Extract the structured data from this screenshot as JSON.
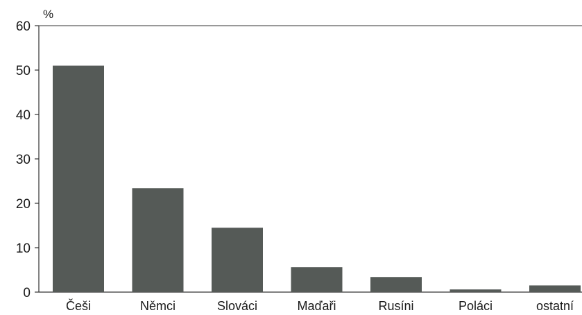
{
  "chart_data": {
    "type": "bar",
    "unit_label": "%",
    "categories": [
      "Češi",
      "Němci",
      "Slováci",
      "Maďaři",
      "Rusíni",
      "Poláci",
      "ostatní"
    ],
    "values": [
      51,
      23.4,
      14.5,
      5.6,
      3.4,
      0.6,
      1.5
    ],
    "ylim": [
      0,
      60
    ],
    "yticks": [
      0,
      10,
      20,
      30,
      40,
      50,
      60
    ],
    "bar_color": "#555a57",
    "axis_color": "#333333",
    "grid": false,
    "legend": false
  }
}
